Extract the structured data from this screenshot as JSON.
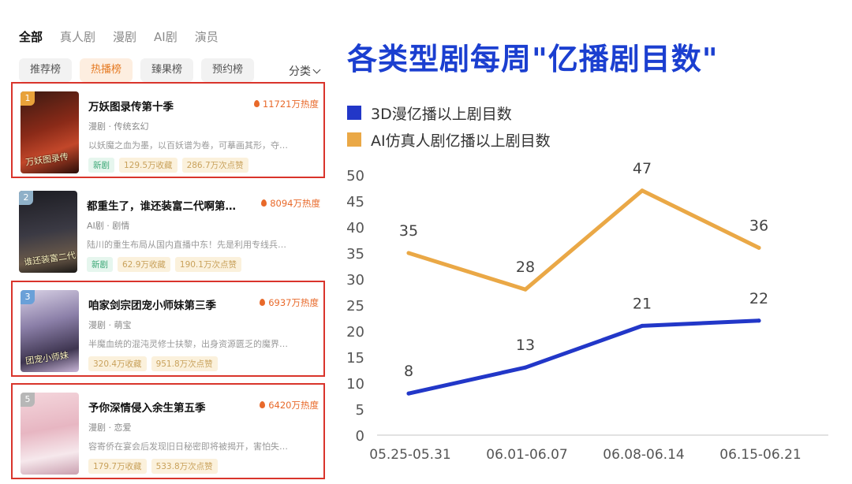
{
  "category_tabs": [
    "全部",
    "真人剧",
    "漫剧",
    "AI剧",
    "演员"
  ],
  "rank_tabs": [
    "推荐榜",
    "热播榜",
    "臻果榜",
    "预约榜"
  ],
  "filter_label": "分类",
  "items": [
    {
      "rank": "1",
      "rank_color": "#e8a23a",
      "title": "万妖图录传第十季",
      "heat": "11721万热度",
      "genre": "漫剧 · 传统玄幻",
      "desc": "以妖魔之血为墨，以百妖谱为卷，可摹画其形，夺…",
      "tags": [
        "新剧",
        "129.5万收藏",
        "286.7万次点赞"
      ],
      "poster_text": "万妖图录传",
      "poster_bg": "linear-gradient(160deg,#3a1a12 0%,#8a2a18 45%,#c2472a 70%,#2a0d08 100%)",
      "boxed": true
    },
    {
      "rank": "2",
      "rank_color": "#8fb0c8",
      "title": "都重生了，谁还装富二代啊第…",
      "heat": "8094万热度",
      "genre": "AI剧 · 剧情",
      "desc": "陆川的重生布局从国内直播中东！先是利用专线兵…",
      "tags": [
        "新剧",
        "62.9万收藏",
        "190.1万次点赞"
      ],
      "poster_text": "谁还装富二代",
      "poster_bg": "linear-gradient(170deg,#1c1c22 0%,#3b3a44 50%,#6b5a4a 80%,#1a1816 100%)",
      "boxed": false
    },
    {
      "rank": "3",
      "rank_color": "#6aa0d8",
      "title": "咱家剑宗团宠小师妹第三季",
      "heat": "6937万热度",
      "genre": "漫剧 · 萌宝",
      "desc": "半魔血统的混沌灵修士扶黎，出身资源匮乏的魔界…",
      "tags": [
        "320.4万收藏",
        "951.8万次点赞"
      ],
      "poster_text": "团宠小师妹",
      "poster_bg": "linear-gradient(165deg,#d9d2e6 0%,#8b7fa8 40%,#3e3550 75%,#c9b6d8 100%)",
      "boxed": true
    },
    {
      "rank": "5",
      "rank_color": "#b7b7b7",
      "title": "予你深情侵入余生第五季",
      "heat": "6420万热度",
      "genre": "漫剧 · 恋爱",
      "desc": "容寄侨在宴会后发现旧日秘密即将被揭开，害怕失…",
      "tags": [
        "179.7万收藏",
        "533.8万次点赞"
      ],
      "poster_text": "",
      "poster_bg": "linear-gradient(170deg,#f4d6dc 0%,#e7b6c2 45%,#f6e8ec 75%,#caa0b0 100%)",
      "boxed": true
    }
  ],
  "chart_data": {
    "type": "line",
    "title": "各类型剧每周\"亿播剧目数\"",
    "categories": [
      "05.25-05.31",
      "06.01-06.07",
      "06.08-06.14",
      "06.15-06.21"
    ],
    "series": [
      {
        "name": "3D漫亿播以上剧目数",
        "values": [
          8,
          13,
          21,
          22
        ],
        "color": "#2237c8"
      },
      {
        "name": "AI仿真人剧亿播以上剧目数",
        "values": [
          35,
          28,
          47,
          36
        ],
        "color": "#eaa846"
      }
    ],
    "ylim": [
      0,
      50
    ],
    "yticks": [
      0,
      5,
      10,
      15,
      20,
      25,
      30,
      35,
      40,
      45,
      50
    ],
    "legend": "top-left",
    "grid": false
  }
}
